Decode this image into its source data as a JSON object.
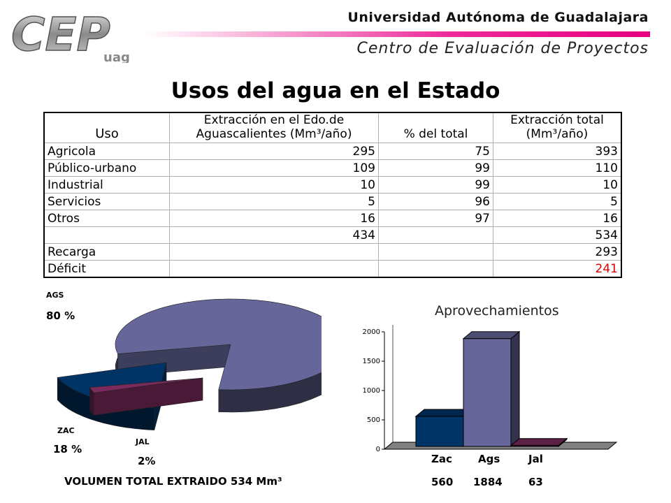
{
  "header": {
    "logo_text": "CEP",
    "logo_sub": "uag",
    "university": "Universidad Autónoma de Guadalajara",
    "center": "Centro de Evaluación de Proyectos",
    "bar_color": "#e6007e"
  },
  "title": "Usos del agua en el Estado",
  "table": {
    "headers": {
      "uso": "Uso",
      "extraccion_edo_1": "Extracción en el Edo.de",
      "extraccion_edo_2": "Aguascalientes (Mm³/año)",
      "pct": "% del total",
      "total_1": "Extracción total",
      "total_2": "(Mm³/año)"
    },
    "rows": [
      {
        "uso": "Agricola",
        "edo": "295",
        "pct": "75",
        "total": "393"
      },
      {
        "uso": "Público-urbano",
        "edo": "109",
        "pct": "99",
        "total": "110"
      },
      {
        "uso": "Industrial",
        "edo": "10",
        "pct": "99",
        "total": "10"
      },
      {
        "uso": "Servicios",
        "edo": "5",
        "pct": "96",
        "total": "5"
      },
      {
        "uso": "Otros",
        "edo": "16",
        "pct": "97",
        "total": "16"
      },
      {
        "uso": "",
        "edo": "434",
        "pct": "",
        "total": "534"
      },
      {
        "uso": "Recarga",
        "edo": "",
        "pct": "",
        "total": "293"
      },
      {
        "uso": "Déficit",
        "edo": "",
        "pct": "",
        "total": "241"
      }
    ],
    "deficit_color": "#e00000"
  },
  "chart_data": [
    {
      "type": "pie",
      "title": "",
      "slices": [
        {
          "label": "AGS",
          "value_label": "80 %",
          "value": 80,
          "color": "#66669a"
        },
        {
          "label": "ZAC",
          "value_label": "18 %",
          "value": 18,
          "color": "#003366"
        },
        {
          "label": "JAL",
          "value_label": "2%",
          "value": 2,
          "color": "#7a2a5c"
        }
      ],
      "footer": "VOLUMEN TOTAL EXTRAIDO 534 Mm³"
    },
    {
      "type": "bar",
      "title": "Aprovechamientos",
      "categories": [
        "Zac",
        "Ags",
        "Jal"
      ],
      "values": [
        560,
        1884,
        63
      ],
      "value_labels": [
        "560",
        "1884",
        "63"
      ],
      "colors": [
        "#003366",
        "#66669a",
        "#7a2a5c"
      ],
      "ylim": [
        0,
        2000
      ],
      "yticks": [
        "0",
        "500",
        "1000",
        "1500",
        "2000"
      ]
    }
  ]
}
